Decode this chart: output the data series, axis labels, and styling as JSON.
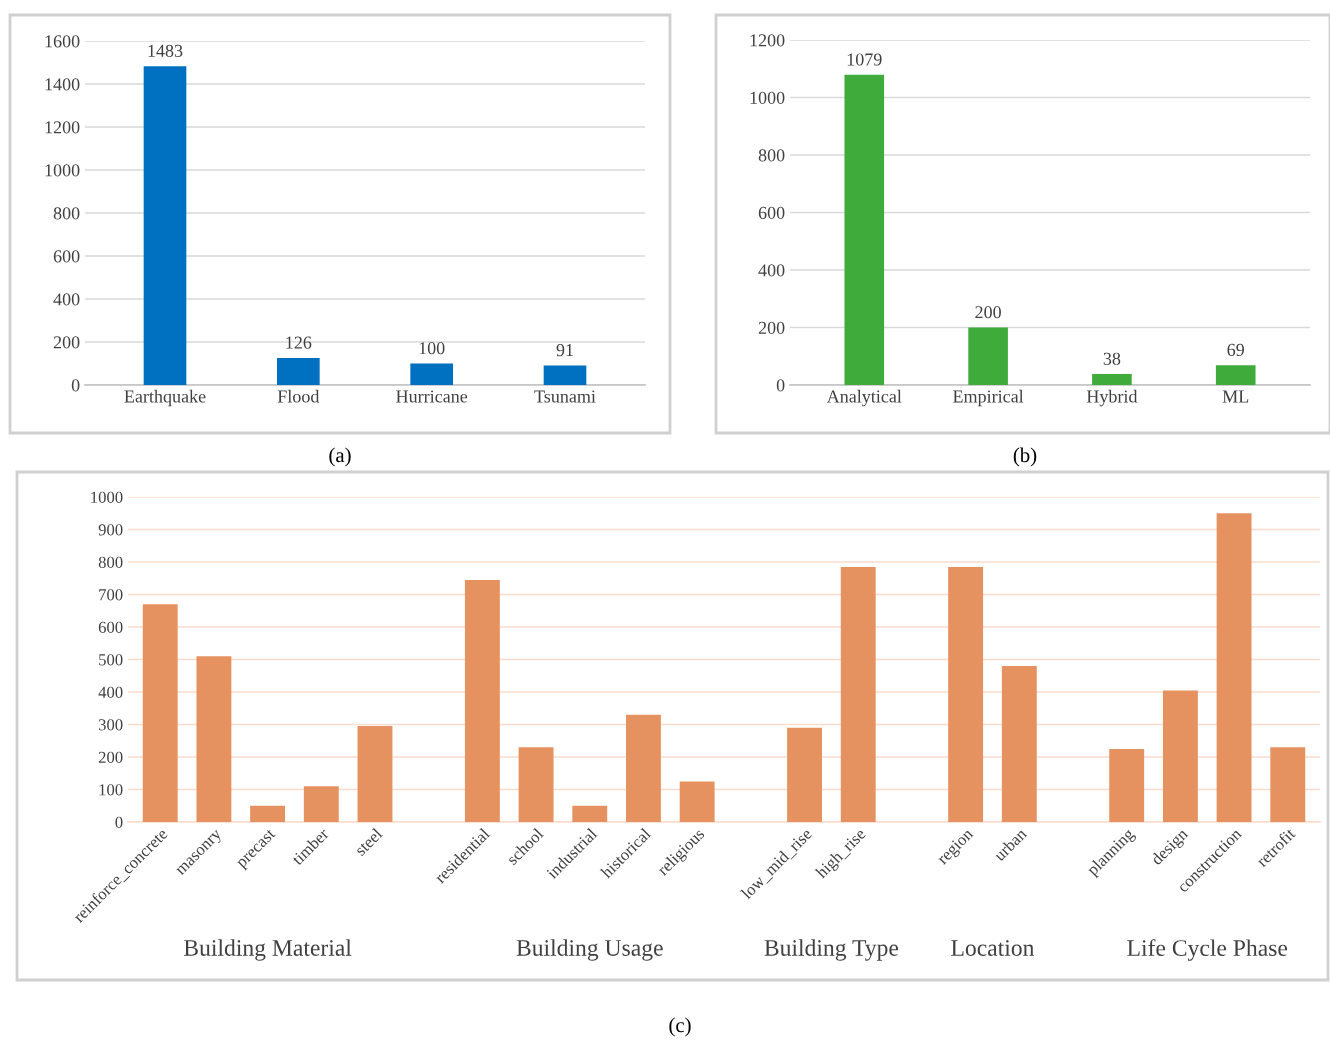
{
  "chart_data": [
    {
      "type": "bar",
      "categories": [
        "Earthquake",
        "Flood",
        "Hurricane",
        "Tsunami"
      ],
      "values": [
        1483,
        126,
        100,
        91
      ],
      "color": "#0070c0",
      "ylim": [
        0,
        1600
      ],
      "yticks": [
        0,
        200,
        400,
        600,
        800,
        1000,
        1200,
        1400,
        1600
      ],
      "grid": "y",
      "data_labels": true,
      "annotations": [
        "(a)"
      ]
    },
    {
      "type": "bar",
      "categories": [
        "Analytical",
        "Empirical",
        "Hybrid",
        "ML"
      ],
      "values": [
        1079,
        200,
        38,
        69
      ],
      "color": "#3eab3b",
      "ylim": [
        0,
        1200
      ],
      "yticks": [
        0,
        200,
        400,
        600,
        800,
        1000,
        1200
      ],
      "grid": "y",
      "data_labels": true,
      "annotations": [
        "(b)"
      ]
    },
    {
      "type": "bar",
      "categories": [
        "reinforce_concrete",
        "masonry",
        "precast",
        "timber",
        "steel",
        null,
        "residential",
        "school",
        "industrial",
        "historical",
        "religious",
        null,
        "low_mid_rise",
        "high_rise",
        null,
        "region",
        "urban",
        null,
        "planning",
        "design",
        "construction",
        "retrofit"
      ],
      "values": [
        670,
        510,
        50,
        110,
        295,
        null,
        745,
        230,
        50,
        330,
        125,
        null,
        290,
        785,
        null,
        785,
        480,
        null,
        225,
        405,
        950,
        230
      ],
      "color": "#e69260",
      "ylim": [
        0,
        1000
      ],
      "yticks": [
        0,
        100,
        200,
        300,
        400,
        500,
        600,
        700,
        800,
        900,
        1000
      ],
      "grid": "y",
      "annotations": [
        "Building Material",
        "Building Usage",
        "Building Type",
        "Location",
        "Life Cycle Phase",
        "(c)"
      ]
    }
  ]
}
